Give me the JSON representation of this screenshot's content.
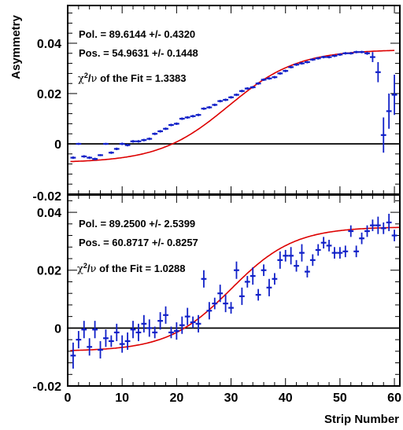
{
  "chart_data": [
    {
      "type": "scatter",
      "panel": "top",
      "ylabel": "Asymmetry",
      "xlim": [
        0,
        61
      ],
      "ylim": [
        -0.02,
        0.055
      ],
      "y_ticks": [
        {
          "value": -0.02,
          "label": "-0.02"
        },
        {
          "value": 0,
          "label": "0"
        },
        {
          "value": 0.02,
          "label": "0.02"
        },
        {
          "value": 0.04,
          "label": "0.04"
        }
      ],
      "zero_line": true,
      "annotations": [
        "Pol. = 89.6144 +/- 0.4320",
        "Pos. = 54.9631 +/- 0.1448"
      ],
      "chi2_text": "of the Fit = 1.3383",
      "fit": {
        "name": "",
        "color": "#dd0000",
        "x_range": [
          0.5,
          60
        ],
        "offset": 0.015,
        "amplitude": 0.0225,
        "center": 29.5,
        "width": 25.5
      },
      "series": [
        {
          "name": "",
          "color": "#1020c8",
          "points": [
            [
              1,
              -0.0055,
              0.0005
            ],
            [
              2,
              0,
              0.0004
            ],
            [
              3,
              -0.005,
              0.0005
            ],
            [
              4,
              -0.0055,
              0.0005
            ],
            [
              5,
              -0.006,
              0.0005
            ],
            [
              6,
              -0.0045,
              0.0004
            ],
            [
              7,
              0,
              0.0004
            ],
            [
              8,
              -0.0035,
              0.0005
            ],
            [
              9,
              -0.002,
              0.0005
            ],
            [
              10,
              0,
              0.0005
            ],
            [
              11,
              -0.0005,
              0.0005
            ],
            [
              12,
              0.001,
              0.0005
            ],
            [
              13,
              0.001,
              0.0005
            ],
            [
              14,
              0.0015,
              0.0005
            ],
            [
              15,
              0.002,
              0.0005
            ],
            [
              16,
              0.004,
              0.0005
            ],
            [
              17,
              0.005,
              0.0005
            ],
            [
              18,
              0.006,
              0.0005
            ],
            [
              19,
              0.0075,
              0.0005
            ],
            [
              20,
              0.008,
              0.0005
            ],
            [
              21,
              0.01,
              0.0005
            ],
            [
              22,
              0.0105,
              0.0005
            ],
            [
              23,
              0.011,
              0.0005
            ],
            [
              24,
              0.0115,
              0.0005
            ],
            [
              25,
              0.014,
              0.0005
            ],
            [
              26,
              0.0145,
              0.0005
            ],
            [
              27,
              0.0155,
              0.0005
            ],
            [
              28,
              0.017,
              0.0005
            ],
            [
              29,
              0.0175,
              0.0005
            ],
            [
              30,
              0.0185,
              0.0005
            ],
            [
              31,
              0.0195,
              0.0005
            ],
            [
              32,
              0.021,
              0.0005
            ],
            [
              33,
              0.022,
              0.0005
            ],
            [
              34,
              0.0225,
              0.0005
            ],
            [
              35,
              0.024,
              0.0005
            ],
            [
              36,
              0.0255,
              0.0005
            ],
            [
              37,
              0.026,
              0.0005
            ],
            [
              38,
              0.0265,
              0.0005
            ],
            [
              39,
              0.028,
              0.0005
            ],
            [
              40,
              0.029,
              0.0005
            ],
            [
              41,
              0.0305,
              0.0005
            ],
            [
              42,
              0.0315,
              0.0005
            ],
            [
              43,
              0.032,
              0.0005
            ],
            [
              44,
              0.0325,
              0.0005
            ],
            [
              45,
              0.0335,
              0.0005
            ],
            [
              46,
              0.034,
              0.0005
            ],
            [
              47,
              0.0345,
              0.0005
            ],
            [
              48,
              0.0345,
              0.0005
            ],
            [
              49,
              0.035,
              0.0005
            ],
            [
              50,
              0.0355,
              0.0005
            ],
            [
              51,
              0.036,
              0.0005
            ],
            [
              52,
              0.036,
              0.0005
            ],
            [
              53,
              0.0365,
              0.0005
            ],
            [
              54,
              0.0365,
              0.0005
            ],
            [
              55,
              0.036,
              0.0006
            ],
            [
              56,
              0.0345,
              0.002
            ],
            [
              57,
              0.0285,
              0.004
            ],
            [
              58,
              0.0035,
              0.007
            ],
            [
              59,
              0.013,
              0.007
            ],
            [
              60,
              0.0195,
              0.008
            ]
          ]
        }
      ]
    },
    {
      "type": "scatter",
      "panel": "bottom",
      "xlabel": "Strip Number",
      "xlim": [
        0,
        61
      ],
      "ylim": [
        -0.02,
        0.046
      ],
      "x_ticks": [
        {
          "value": 0,
          "label": "0"
        },
        {
          "value": 10,
          "label": "10"
        },
        {
          "value": 20,
          "label": "20"
        },
        {
          "value": 30,
          "label": "30"
        },
        {
          "value": 40,
          "label": "40"
        },
        {
          "value": 50,
          "label": "50"
        },
        {
          "value": 60,
          "label": "60"
        }
      ],
      "y_ticks": [
        {
          "value": -0.02,
          "label": "-0.02"
        },
        {
          "value": 0,
          "label": "0"
        },
        {
          "value": 0.02,
          "label": "0.02"
        },
        {
          "value": 0.04,
          "label": "0.04"
        }
      ],
      "zero_line": true,
      "annotations": [
        "Pol. = 89.2500 +/- 2.5399",
        "Pos. = 60.8717 +/- 0.8257"
      ],
      "chi2_text": "of the Fit = 1.0288",
      "fit": {
        "name": "",
        "color": "#dd0000",
        "x_range": [
          0.5,
          61
        ],
        "offset": 0.0135,
        "amplitude": 0.0215,
        "center": 30,
        "width": 23.2
      },
      "series": [
        {
          "name": "",
          "color": "#1020c8",
          "points": [
            [
              1,
              -0.0095,
              0.0045
            ],
            [
              2,
              -0.004,
              0.003
            ],
            [
              3,
              -0.0005,
              0.003
            ],
            [
              4,
              -0.0065,
              0.003
            ],
            [
              5,
              -0.0005,
              0.003
            ],
            [
              6,
              -0.0075,
              0.003
            ],
            [
              7,
              -0.0035,
              0.003
            ],
            [
              8,
              -0.0045,
              0.002
            ],
            [
              9,
              -0.0015,
              0.003
            ],
            [
              10,
              -0.0055,
              0.003
            ],
            [
              11,
              -0.0045,
              0.003
            ],
            [
              12,
              -0.0005,
              0.003
            ],
            [
              13,
              -0.0015,
              0.003
            ],
            [
              14,
              0.0015,
              0.003
            ],
            [
              15,
              0.0,
              0.003
            ],
            [
              16,
              -0.0015,
              0.002
            ],
            [
              17,
              0.0025,
              0.003
            ],
            [
              18,
              0.0045,
              0.003
            ],
            [
              19,
              -0.0015,
              0.002
            ],
            [
              20,
              -0.001,
              0.003
            ],
            [
              21,
              0.001,
              0.003
            ],
            [
              22,
              0.004,
              0.003
            ],
            [
              23,
              0.002,
              0.002
            ],
            [
              24,
              0.0015,
              0.003
            ],
            [
              25,
              0.017,
              0.003
            ],
            [
              26,
              0.006,
              0.003
            ],
            [
              27,
              0.0085,
              0.002
            ],
            [
              28,
              0.012,
              0.003
            ],
            [
              29,
              0.0085,
              0.003
            ],
            [
              30,
              0.007,
              0.002
            ],
            [
              31,
              0.02,
              0.003
            ],
            [
              32,
              0.011,
              0.003
            ],
            [
              33,
              0.016,
              0.002
            ],
            [
              34,
              0.018,
              0.003
            ],
            [
              35,
              0.0115,
              0.002
            ],
            [
              36,
              0.02,
              0.002
            ],
            [
              37,
              0.014,
              0.003
            ],
            [
              38,
              0.017,
              0.002
            ],
            [
              39,
              0.0235,
              0.003
            ],
            [
              40,
              0.025,
              0.002
            ],
            [
              41,
              0.025,
              0.003
            ],
            [
              42,
              0.0215,
              0.002
            ],
            [
              43,
              0.026,
              0.003
            ],
            [
              44,
              0.0195,
              0.002
            ],
            [
              45,
              0.0235,
              0.002
            ],
            [
              46,
              0.027,
              0.002
            ],
            [
              47,
              0.0295,
              0.002
            ],
            [
              48,
              0.0285,
              0.002
            ],
            [
              49,
              0.026,
              0.002
            ],
            [
              50,
              0.026,
              0.002
            ],
            [
              51,
              0.0265,
              0.002
            ],
            [
              52,
              0.0335,
              0.002
            ],
            [
              53,
              0.0265,
              0.002
            ],
            [
              54,
              0.031,
              0.002
            ],
            [
              55,
              0.0335,
              0.002
            ],
            [
              56,
              0.0355,
              0.002
            ],
            [
              57,
              0.0355,
              0.003
            ],
            [
              58,
              0.0345,
              0.002
            ],
            [
              59,
              0.0365,
              0.003
            ],
            [
              60,
              0.032,
              0.002
            ]
          ]
        }
      ]
    }
  ]
}
